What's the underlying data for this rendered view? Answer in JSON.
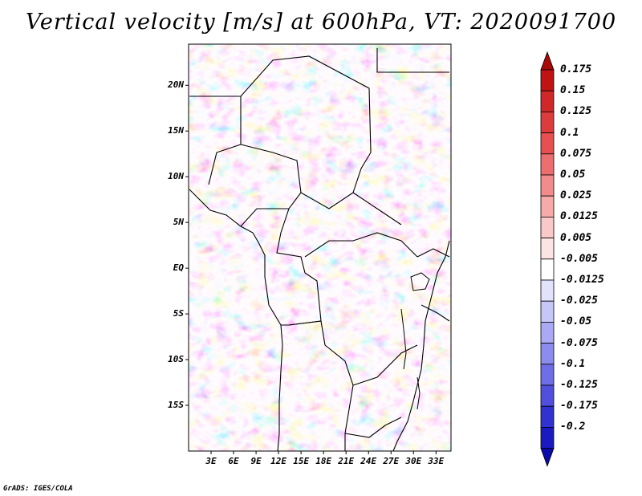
{
  "title": "Vertical velocity [m/s] at 600hPa, VT: 2020091700",
  "credit": "GrADS: IGES/COLA",
  "map": {
    "variable": "Vertical velocity",
    "level": "600hPa",
    "valid_time": "2020091700",
    "units": "m/s",
    "projection": "lat-lon",
    "lon_range": [
      0,
      35
    ],
    "lat_range": [
      -20,
      24.5
    ]
  },
  "axes": {
    "lat_ticks": [
      {
        "label": "20N",
        "value": 20
      },
      {
        "label": "15N",
        "value": 15
      },
      {
        "label": "10N",
        "value": 10
      },
      {
        "label": "5N",
        "value": 5
      },
      {
        "label": "EQ",
        "value": 0
      },
      {
        "label": "5S",
        "value": -5
      },
      {
        "label": "10S",
        "value": -10
      },
      {
        "label": "15S",
        "value": -15
      }
    ],
    "lon_ticks": [
      {
        "label": "3E",
        "value": 3
      },
      {
        "label": "6E",
        "value": 6
      },
      {
        "label": "9E",
        "value": 9
      },
      {
        "label": "12E",
        "value": 12
      },
      {
        "label": "15E",
        "value": 15
      },
      {
        "label": "18E",
        "value": 18
      },
      {
        "label": "21E",
        "value": 21
      },
      {
        "label": "24E",
        "value": 24
      },
      {
        "label": "27E",
        "value": 27
      },
      {
        "label": "30E",
        "value": 30
      },
      {
        "label": "33E",
        "value": 33
      }
    ]
  },
  "colorbar": {
    "levels": [
      {
        "label": "0.175",
        "color": "#c01414"
      },
      {
        "label": "0.15",
        "color": "#d02828"
      },
      {
        "label": "0.125",
        "color": "#dc3c3c"
      },
      {
        "label": "0.1",
        "color": "#e65050"
      },
      {
        "label": "0.075",
        "color": "#ec6e6e"
      },
      {
        "label": "0.05",
        "color": "#f28c8c"
      },
      {
        "label": "0.025",
        "color": "#f7aaaa"
      },
      {
        "label": "0.0125",
        "color": "#fac8c8"
      },
      {
        "label": "0.005",
        "color": "#fde4e4"
      },
      {
        "label": "-0.005",
        "color": "#ffffff"
      },
      {
        "label": "-0.0125",
        "color": "#e2e2fc"
      },
      {
        "label": "-0.025",
        "color": "#c6c6f8"
      },
      {
        "label": "-0.05",
        "color": "#aaaaf4"
      },
      {
        "label": "-0.075",
        "color": "#8c8cee"
      },
      {
        "label": "-0.1",
        "color": "#6e6ee6"
      },
      {
        "label": "-0.125",
        "color": "#5050dc"
      },
      {
        "label": "-0.175",
        "color": "#3232d0"
      },
      {
        "label": "-0.2",
        "color": "#1a1ac0"
      }
    ],
    "over_color": "#a80a0a",
    "under_color": "#0a0aa8"
  }
}
